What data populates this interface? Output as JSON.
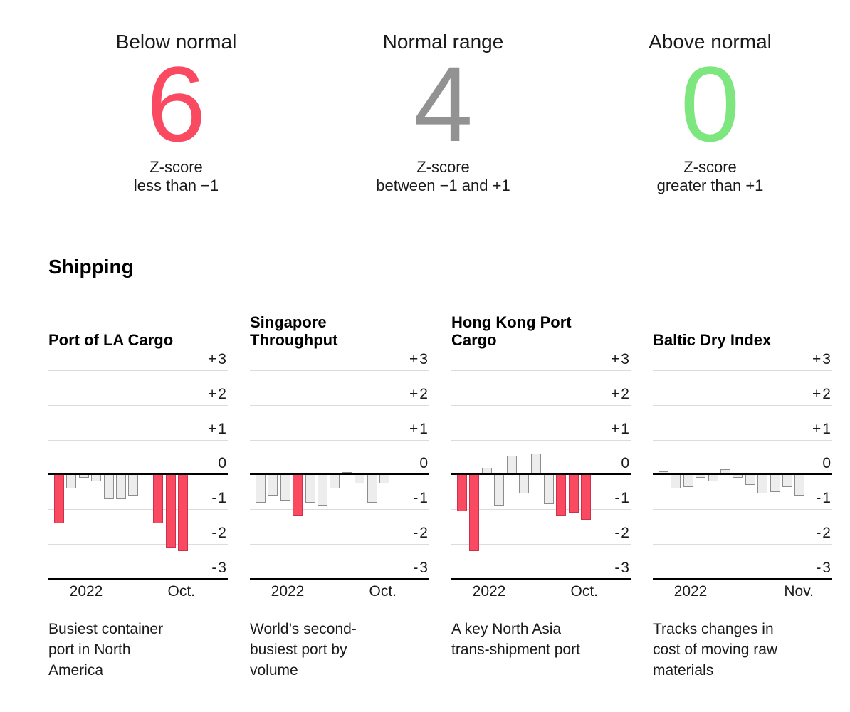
{
  "summary": {
    "cards": [
      {
        "title": "Below normal",
        "value": "6",
        "color": "#fa4a62",
        "caption": [
          "Z-score",
          "less than −1"
        ]
      },
      {
        "title": "Normal range",
        "value": "4",
        "color": "#929292",
        "caption": [
          "Z-score",
          "between −1 and +1"
        ]
      },
      {
        "title": "Above normal",
        "value": "0",
        "color": "#7ee67e",
        "caption": [
          "Z-score",
          "greater than +1"
        ]
      }
    ]
  },
  "section": {
    "title": "Shipping"
  },
  "chart_data": [
    {
      "type": "bar",
      "title": "Port of LA Cargo",
      "title_lines": [
        "Port of LA Cargo"
      ],
      "ylim": [
        -3,
        3
      ],
      "yticks": [
        "+3",
        "+2",
        "+1",
        "0",
        "-1",
        "-2",
        "-3"
      ],
      "grid": true,
      "highlight_rule": "z-score below -1 shown in pink",
      "x_start_label": "2022",
      "x_end_label": "Oct.",
      "values": [
        -1.4,
        -0.4,
        -0.1,
        -0.2,
        -0.7,
        -0.7,
        -0.6,
        0,
        -1.4,
        -2.1,
        -2.2
      ],
      "description": "Busiest container port in North America",
      "desc_lines": [
        "Busiest container",
        "port in North",
        "America"
      ]
    },
    {
      "type": "bar",
      "title": "Singapore Throughput",
      "title_lines": [
        "Singapore",
        "Throughput"
      ],
      "ylim": [
        -3,
        3
      ],
      "yticks": [
        "+3",
        "+2",
        "+1",
        "0",
        "-1",
        "-2",
        "-3"
      ],
      "grid": true,
      "highlight_rule": "z-score below -1 shown in pink",
      "x_start_label": "2022",
      "x_end_label": "Oct.",
      "values": [
        -0.8,
        -0.6,
        -0.75,
        -1.2,
        -0.8,
        -0.9,
        -0.4,
        0.05,
        -0.25,
        -0.8,
        -0.25
      ],
      "description": "World’s second-busiest port by volume",
      "desc_lines": [
        "World’s second-",
        "busiest port by",
        "volume"
      ]
    },
    {
      "type": "bar",
      "title": "Hong Kong Port Cargo",
      "title_lines": [
        "Hong Kong Port",
        "Cargo"
      ],
      "ylim": [
        -3,
        3
      ],
      "yticks": [
        "+3",
        "+2",
        "+1",
        "0",
        "-1",
        "-2",
        "-3"
      ],
      "grid": true,
      "highlight_rule": "z-score below -1 shown in pink",
      "x_start_label": "2022",
      "x_end_label": "Oct.",
      "values": [
        -1.05,
        -2.2,
        0.2,
        -0.9,
        0.55,
        -0.55,
        0.6,
        -0.85,
        -1.2,
        -1.1,
        -1.3
      ],
      "description": "A key North Asia trans-shipment port",
      "desc_lines": [
        "A key North Asia",
        "trans-shipment port"
      ]
    },
    {
      "type": "bar",
      "title": "Baltic Dry Index",
      "title_lines": [
        "Baltic Dry Index"
      ],
      "ylim": [
        -3,
        3
      ],
      "yticks": [
        "+3",
        "+2",
        "+1",
        "0",
        "-1",
        "-2",
        "-3"
      ],
      "grid": true,
      "highlight_rule": "z-score below -1 shown in pink",
      "x_start_label": "2022",
      "x_end_label": "Nov.",
      "values": [
        0.1,
        -0.4,
        -0.35,
        -0.1,
        -0.2,
        0.15,
        -0.1,
        -0.3,
        -0.55,
        -0.5,
        -0.35,
        -0.6
      ],
      "description": "Tracks changes in cost of moving raw materials",
      "desc_lines": [
        "Tracks changes in",
        "cost of moving raw",
        "materials"
      ]
    }
  ],
  "colors": {
    "below_normal": "#fa4a62",
    "below_normal_border": "#cf2f4c",
    "normal": "#ededed",
    "normal_border": "#8d8d8d",
    "above_normal": "#7ee67e",
    "gridline": "#dcdcdc",
    "axis": "#000000"
  }
}
